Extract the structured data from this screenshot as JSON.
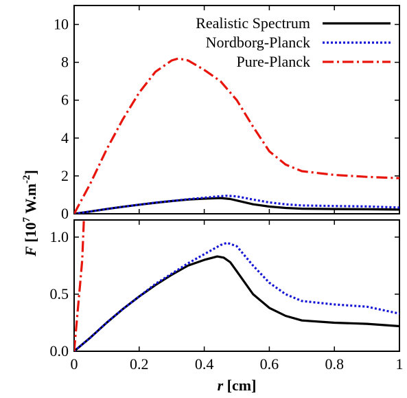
{
  "chart_data": [
    {
      "panel": "top",
      "type": "line",
      "title": "",
      "xlabel": "",
      "ylabel": "",
      "xlim": [
        0,
        1
      ],
      "ylim": [
        0,
        11
      ],
      "x_ticks": [
        0,
        0.2,
        0.4,
        0.6,
        0.8,
        1
      ],
      "y_ticks": [
        0,
        2,
        4,
        6,
        8,
        10
      ],
      "y_tick_labels": [
        "0",
        "2",
        "4",
        "6",
        "8",
        "10"
      ],
      "grid": false,
      "legend_position": "top-right",
      "series": [
        {
          "name": "Realistic Spectrum",
          "style": "solid",
          "color": "#000000",
          "x": [
            0,
            0.05,
            0.1,
            0.15,
            0.2,
            0.25,
            0.3,
            0.35,
            0.4,
            0.45,
            0.48,
            0.5,
            0.55,
            0.6,
            0.65,
            0.7,
            0.8,
            0.9,
            1.0
          ],
          "y": [
            0,
            0.12,
            0.25,
            0.37,
            0.48,
            0.58,
            0.67,
            0.75,
            0.8,
            0.83,
            0.78,
            0.7,
            0.5,
            0.38,
            0.31,
            0.27,
            0.25,
            0.24,
            0.22
          ]
        },
        {
          "name": "Nordborg-Planck",
          "style": "dotted",
          "color": "#1515d6",
          "x": [
            0,
            0.05,
            0.1,
            0.15,
            0.2,
            0.25,
            0.3,
            0.35,
            0.4,
            0.45,
            0.47,
            0.5,
            0.55,
            0.6,
            0.65,
            0.7,
            0.8,
            0.9,
            1.0
          ],
          "y": [
            0,
            0.12,
            0.25,
            0.37,
            0.48,
            0.59,
            0.68,
            0.77,
            0.85,
            0.93,
            0.95,
            0.92,
            0.75,
            0.6,
            0.5,
            0.44,
            0.41,
            0.39,
            0.33
          ]
        },
        {
          "name": "Pure-Planck",
          "style": "dashdot",
          "color": "#e8150c",
          "x": [
            0,
            0.05,
            0.1,
            0.15,
            0.2,
            0.25,
            0.3,
            0.32,
            0.35,
            0.4,
            0.45,
            0.5,
            0.55,
            0.6,
            0.65,
            0.7,
            0.8,
            0.9,
            1.0
          ],
          "y": [
            0,
            1.6,
            3.4,
            5.0,
            6.4,
            7.5,
            8.1,
            8.2,
            8.1,
            7.6,
            7.0,
            6.0,
            4.6,
            3.3,
            2.6,
            2.25,
            2.05,
            1.95,
            1.88
          ]
        }
      ]
    },
    {
      "panel": "bottom",
      "type": "line",
      "title": "",
      "xlabel": "r [cm]",
      "ylabel": "F [10^7 W.m^-2]",
      "xlim": [
        0,
        1
      ],
      "ylim": [
        0,
        1.15
      ],
      "x_ticks": [
        0,
        0.2,
        0.4,
        0.6,
        0.8,
        1
      ],
      "x_tick_labels": [
        "0",
        "0.2",
        "0.4",
        "0.6",
        "0.8",
        "1"
      ],
      "y_ticks": [
        0,
        0.5,
        1.0
      ],
      "y_tick_labels": [
        "0.0",
        "0.5",
        "1.0"
      ],
      "grid": false,
      "series": [
        {
          "name": "Realistic Spectrum",
          "style": "solid",
          "color": "#000000",
          "x": [
            0,
            0.05,
            0.1,
            0.15,
            0.2,
            0.25,
            0.3,
            0.35,
            0.4,
            0.44,
            0.46,
            0.48,
            0.5,
            0.55,
            0.6,
            0.65,
            0.7,
            0.8,
            0.9,
            1.0
          ],
          "y": [
            0,
            0.12,
            0.25,
            0.37,
            0.48,
            0.58,
            0.67,
            0.75,
            0.8,
            0.83,
            0.82,
            0.78,
            0.7,
            0.5,
            0.38,
            0.31,
            0.27,
            0.25,
            0.24,
            0.22
          ]
        },
        {
          "name": "Nordborg-Planck",
          "style": "dotted",
          "color": "#1515d6",
          "x": [
            0,
            0.05,
            0.1,
            0.15,
            0.2,
            0.25,
            0.3,
            0.35,
            0.4,
            0.45,
            0.47,
            0.5,
            0.55,
            0.6,
            0.65,
            0.7,
            0.8,
            0.9,
            1.0
          ],
          "y": [
            0,
            0.12,
            0.25,
            0.37,
            0.48,
            0.59,
            0.68,
            0.77,
            0.85,
            0.93,
            0.95,
            0.92,
            0.75,
            0.6,
            0.5,
            0.44,
            0.41,
            0.39,
            0.33
          ]
        },
        {
          "name": "Pure-Planck",
          "style": "dashdot",
          "color": "#e8150c",
          "x": [
            0,
            0.01,
            0.02,
            0.025,
            0.03
          ],
          "y": [
            0,
            0.32,
            0.64,
            0.8,
            1.15
          ]
        }
      ]
    }
  ],
  "axis_labels": {
    "x_var": "r",
    "x_unit": " [cm]",
    "y_var": "F",
    "y_unit_pre": " [10",
    "y_exp1": "7",
    "y_unit_mid": " W.m",
    "y_exp2": "-2",
    "y_unit_post": "]"
  }
}
